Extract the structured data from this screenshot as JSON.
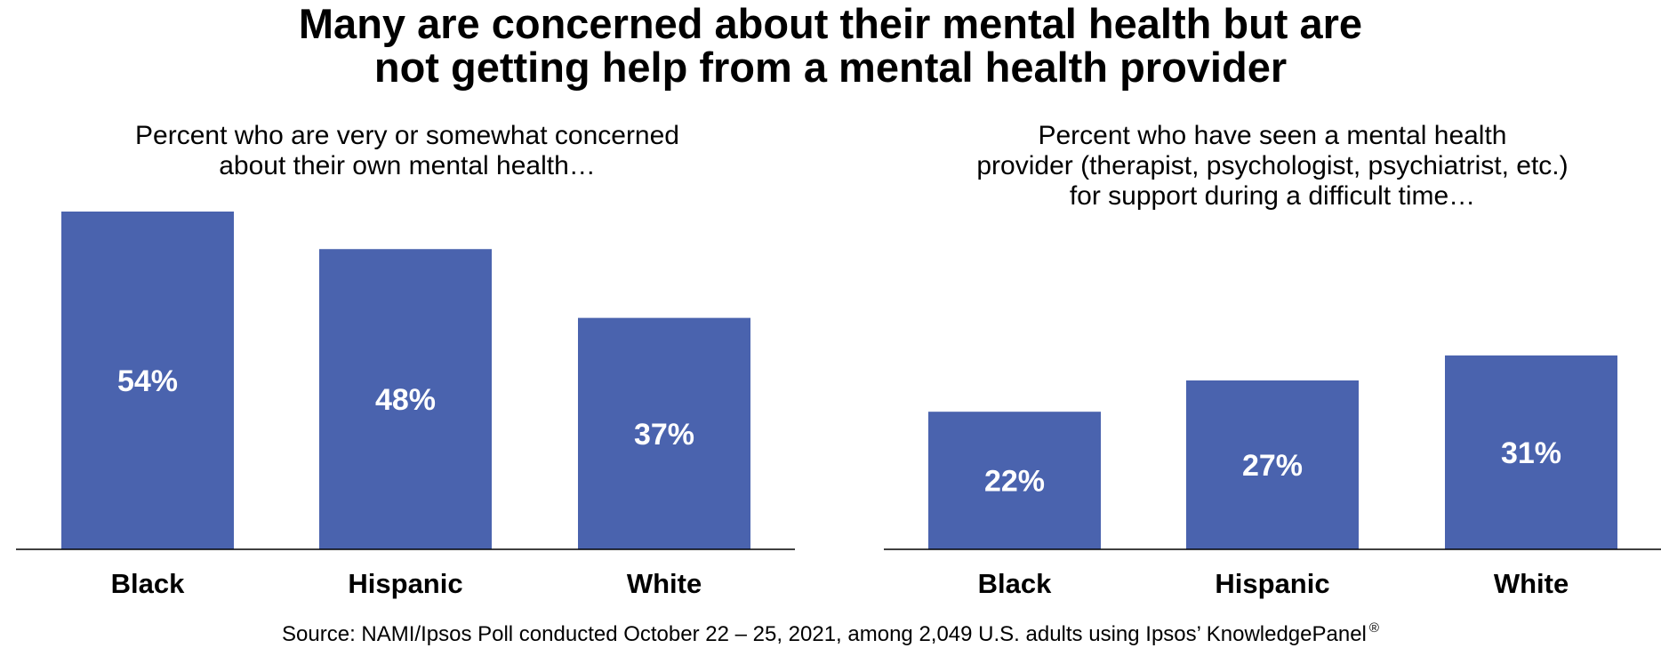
{
  "title_lines": [
    "Many are concerned about their mental health but are",
    "not getting help from a mental health provider"
  ],
  "source": {
    "text": "Source: NAMI/Ipsos Poll conducted October 22 – 25, 2021, among 2,049 U.S. adults using Ipsos’ KnowledgePanel",
    "mark": "®"
  },
  "colors": {
    "bar": "#4A63AE",
    "axis": "#000000",
    "bar_label": "#ffffff"
  },
  "chart_data": [
    {
      "type": "bar",
      "subtitle_lines": [
        "Percent who are very or somewhat concerned",
        "about their own mental health…"
      ],
      "categories": [
        "Black",
        "Hispanic",
        "White"
      ],
      "values": [
        54,
        48,
        37
      ],
      "data_labels": [
        "54%",
        "48%",
        "37%"
      ],
      "unit": "%",
      "ylim": [
        0,
        54
      ],
      "grid": false,
      "legend": "none"
    },
    {
      "type": "bar",
      "subtitle_lines": [
        "Percent who have seen a mental health",
        "provider (therapist, psychologist, psychiatrist, etc.)",
        "for support during a difficult time…"
      ],
      "categories": [
        "Black",
        "Hispanic",
        "White"
      ],
      "values": [
        22,
        27,
        31
      ],
      "data_labels": [
        "22%",
        "27%",
        "31%"
      ],
      "unit": "%",
      "ylim": [
        0,
        54
      ],
      "grid": false,
      "legend": "none"
    }
  ]
}
